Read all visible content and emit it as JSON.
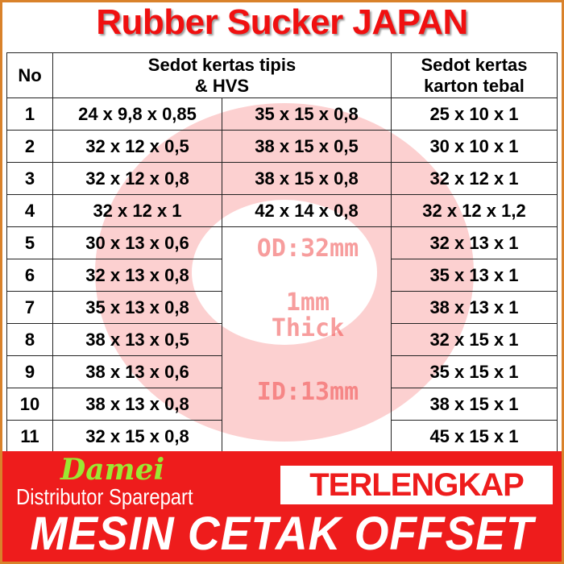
{
  "title": "Rubber Sucker JAPAN",
  "watermarks": {
    "od": "OD:32mm",
    "thick": "1mm Thick",
    "id": "ID:13mm"
  },
  "headers": {
    "no": "No",
    "thin": "Sedot kertas tipis & HVS",
    "thick": "Sedot kertas karton tebal"
  },
  "rows": [
    {
      "no": "1",
      "a": "24 x 9,8 x 0,85",
      "b": "35 x 15 x 0,8",
      "c": "25 x 10 x 1"
    },
    {
      "no": "2",
      "a": "32 x 12 x 0,5",
      "b": "38 x 15 x 0,5",
      "c": "30 x 10 x 1"
    },
    {
      "no": "3",
      "a": "32 x 12 x 0,8",
      "b": "38 x 15 x 0,8",
      "c": "32 x 12 x 1"
    },
    {
      "no": "4",
      "a": "32 x 12 x 1",
      "b": "42 x 14 x 0,8",
      "c": "32 x 12 x 1,2"
    },
    {
      "no": "5",
      "a": "30 x 13 x 0,6",
      "b": "",
      "c": "32 x 13 x 1"
    },
    {
      "no": "6",
      "a": "32 x 13 x 0,8",
      "b": "",
      "c": "35 x 13 x 1"
    },
    {
      "no": "7",
      "a": "35 x 13 x 0,8",
      "b": "",
      "c": "38 x 13 x 1"
    },
    {
      "no": "8",
      "a": "38 x 13 x 0,5",
      "b": "",
      "c": "32 x 15 x 1"
    },
    {
      "no": "9",
      "a": "38 x 13 x 0,6",
      "b": "",
      "c": "35 x 15 x 1"
    },
    {
      "no": "10",
      "a": "38 x 13 x 0,8",
      "b": "",
      "c": "38 x 15 x 1"
    },
    {
      "no": "11",
      "a": "32 x 15 x 0,8",
      "b": "",
      "c": "45 x 15 x 1"
    }
  ],
  "footer": {
    "brand": "Damei",
    "subtitle": "Distributor Sparepart",
    "badge": "TERLENGKAP",
    "tagline": "MESIN CETAK OFFSET"
  },
  "colors": {
    "red": "#ee1c1c",
    "brand_green": "#9be832",
    "border": "#d9822b"
  }
}
